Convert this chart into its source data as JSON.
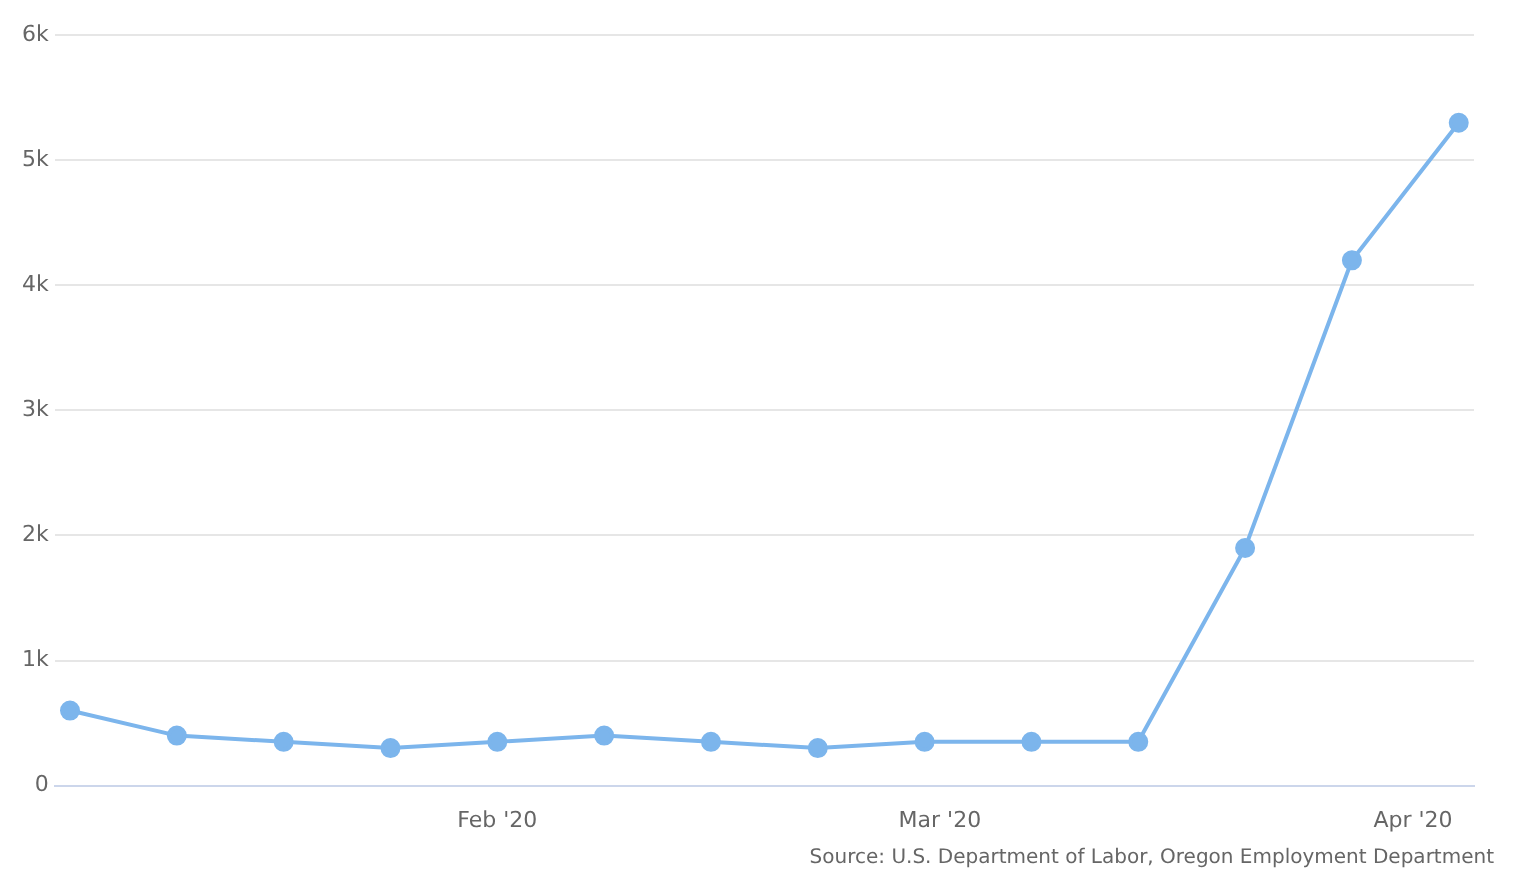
{
  "chart_data": {
    "type": "line",
    "x": [
      "2020-01-04",
      "2020-01-11",
      "2020-01-18",
      "2020-01-25",
      "2020-02-01",
      "2020-02-08",
      "2020-02-15",
      "2020-02-22",
      "2020-02-29",
      "2020-03-07",
      "2020-03-14",
      "2020-03-21",
      "2020-03-28",
      "2020-04-04"
    ],
    "series": [
      {
        "color": "#7cb5ec",
        "values": [
          600,
          400,
          350,
          300,
          350,
          400,
          350,
          300,
          350,
          350,
          350,
          1900,
          4200,
          5300
        ]
      }
    ],
    "xlim": [
      "2020-01-03",
      "2020-04-05"
    ],
    "xticks": [
      {
        "value": "2020-02-01",
        "label": "Feb '20"
      },
      {
        "value": "2020-03-01",
        "label": "Mar '20"
      },
      {
        "value": "2020-04-01",
        "label": "Apr '20"
      }
    ],
    "ylim": [
      0,
      6000
    ],
    "yticks": [
      0,
      {
        "value": 1000,
        "label": "1k"
      },
      {
        "value": 2000,
        "label": "2k"
      },
      {
        "value": 3000,
        "label": "3k"
      },
      {
        "value": 4000,
        "label": "4k"
      },
      {
        "value": 5000,
        "label": "5k"
      },
      {
        "value": 6000,
        "label": "6k"
      }
    ],
    "grid": "y",
    "legend": false,
    "marker": "circle",
    "line_style": "solid",
    "annotations": [
      "Source: U.S. Department of Labor, Oregon Employment Department"
    ]
  }
}
